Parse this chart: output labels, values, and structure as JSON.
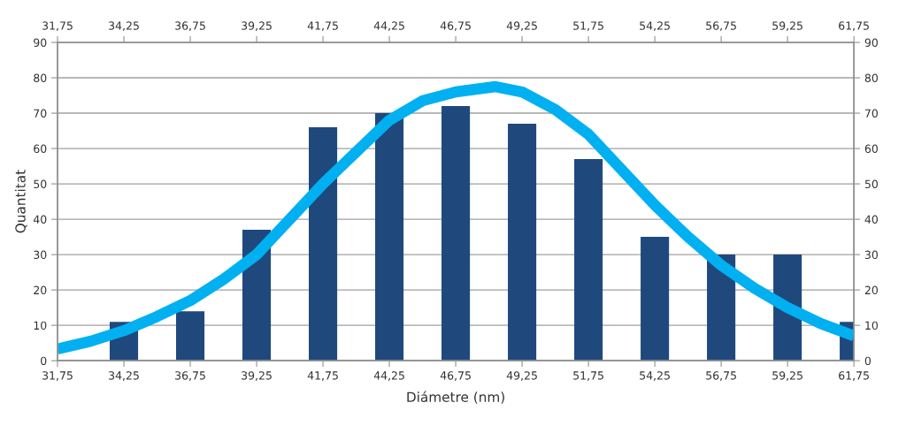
{
  "chart_data": {
    "type": "bar",
    "xlabel": "Diámetre (nm)",
    "ylabel": "Quantitat",
    "x": [
      34.25,
      36.75,
      39.25,
      41.75,
      44.25,
      46.75,
      49.25,
      51.75,
      54.25,
      56.75,
      59.25,
      61.75
    ],
    "series": [
      {
        "color": "#1f497d",
        "values": [
          11,
          14,
          37,
          66,
          70,
          72,
          67,
          57,
          35,
          30,
          30,
          11
        ]
      },
      {
        "type": "line",
        "color": "#00b0f0",
        "x": [
          31.75,
          33,
          34.25,
          35.5,
          36.75,
          38,
          39.25,
          40.5,
          41.75,
          43,
          44.25,
          45.5,
          46.75,
          48.25,
          49.25,
          50.5,
          51.75,
          53,
          54.25,
          55.5,
          56.75,
          58,
          59.25,
          60.5,
          61.75
        ],
        "values": [
          3.3,
          5.5,
          8.5,
          12.5,
          17,
          23,
          30,
          40,
          50,
          59,
          68,
          73.5,
          76,
          77.5,
          76,
          71,
          64,
          54,
          44,
          35,
          27,
          20.5,
          15,
          10.5,
          7
        ]
      }
    ],
    "xlim": [
      31.75,
      61.75
    ],
    "xticks": [
      {
        "value": 31.75,
        "label": "31,75"
      },
      {
        "value": 34.25,
        "label": "34,25"
      },
      {
        "value": 36.75,
        "label": "36,75"
      },
      {
        "value": 39.25,
        "label": "39,25"
      },
      {
        "value": 41.75,
        "label": "41,75"
      },
      {
        "value": 44.25,
        "label": "44,25"
      },
      {
        "value": 46.75,
        "label": "46,75"
      },
      {
        "value": 49.25,
        "label": "49,25"
      },
      {
        "value": 51.75,
        "label": "51,75"
      },
      {
        "value": 54.25,
        "label": "54,25"
      },
      {
        "value": 56.75,
        "label": "56,75"
      },
      {
        "value": 59.25,
        "label": "59,25"
      },
      {
        "value": 61.75,
        "label": "61,75"
      }
    ],
    "x2lim": [
      31.75,
      61.75
    ],
    "x2ticks": [
      {
        "value": 31.75,
        "label": "31,75"
      },
      {
        "value": 34.25,
        "label": "34,25"
      },
      {
        "value": 36.75,
        "label": "36,75"
      },
      {
        "value": 39.25,
        "label": "39,25"
      },
      {
        "value": 41.75,
        "label": "41,75"
      },
      {
        "value": 44.25,
        "label": "44,25"
      },
      {
        "value": 46.75,
        "label": "46,75"
      },
      {
        "value": 49.25,
        "label": "49,25"
      },
      {
        "value": 51.75,
        "label": "51,75"
      },
      {
        "value": 54.25,
        "label": "54,25"
      },
      {
        "value": 56.75,
        "label": "56,75"
      },
      {
        "value": 59.25,
        "label": "59,25"
      },
      {
        "value": 61.75,
        "label": "61,75"
      }
    ],
    "ylim": [
      0,
      90
    ],
    "yticks": [
      0,
      10,
      20,
      30,
      40,
      50,
      60,
      70,
      80,
      90
    ],
    "y2lim": [
      0,
      90
    ],
    "y2ticks": [
      0,
      10,
      20,
      30,
      40,
      50,
      60,
      70,
      80,
      90
    ],
    "grid": "y",
    "legend": false
  }
}
